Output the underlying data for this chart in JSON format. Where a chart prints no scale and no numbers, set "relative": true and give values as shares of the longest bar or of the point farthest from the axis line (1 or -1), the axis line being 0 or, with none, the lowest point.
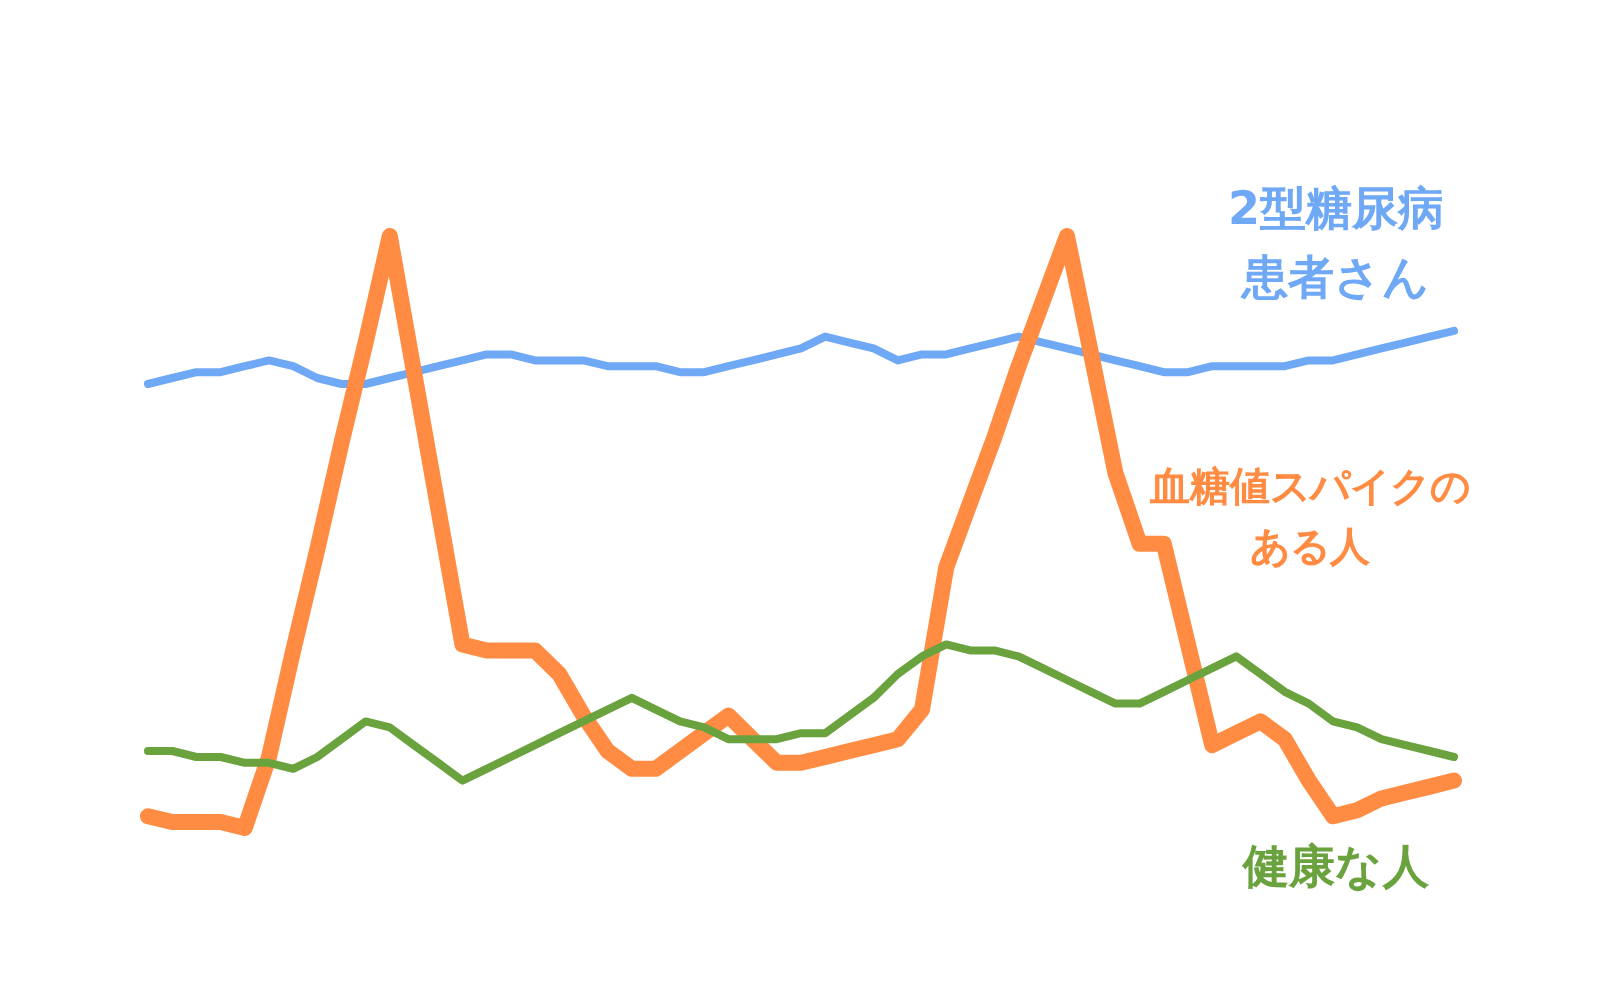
{
  "chart_data": {
    "type": "line",
    "relative": true,
    "legend": false,
    "grid": false,
    "marker": "none",
    "line_style": "solid",
    "categories": [
      null,
      null,
      null,
      null,
      null,
      null,
      null,
      null,
      null,
      null,
      null,
      null,
      null,
      null,
      null,
      null,
      null,
      null,
      null,
      null,
      null,
      null,
      null,
      null,
      null,
      null,
      null,
      null,
      null,
      null,
      null,
      null,
      null,
      null,
      null,
      null,
      null,
      null,
      null,
      null,
      null,
      null,
      null,
      null,
      null,
      null,
      null,
      null,
      null,
      null,
      null,
      null,
      null,
      null,
      null
    ],
    "series": [
      {
        "name": "2型糖尿病患者さん",
        "color": "#6fa8f5",
        "values": [
          0.75,
          0.76,
          0.77,
          0.77,
          0.78,
          0.79,
          0.78,
          0.76,
          0.75,
          0.75,
          0.76,
          0.77,
          0.78,
          0.79,
          0.8,
          0.8,
          0.79,
          0.79,
          0.79,
          0.78,
          0.78,
          0.78,
          0.77,
          0.77,
          0.78,
          0.79,
          0.8,
          0.81,
          0.83,
          0.82,
          0.81,
          0.79,
          0.8,
          0.8,
          0.81,
          0.82,
          0.83,
          0.82,
          0.81,
          0.8,
          0.79,
          0.78,
          0.77,
          0.77,
          0.78,
          0.78,
          0.78,
          0.78,
          0.79,
          0.79,
          0.8,
          0.81,
          0.82,
          0.83,
          0.84
        ]
      },
      {
        "name": "血糖値スパイクのある人",
        "color": "#ff8c42",
        "values": [
          0.02,
          0.01,
          0.01,
          0.01,
          0,
          0.12,
          0.3,
          0.47,
          0.65,
          0.82,
          1,
          0.77,
          0.54,
          0.31,
          0.3,
          0.3,
          0.3,
          0.26,
          0.19,
          0.13,
          0.1,
          0.1,
          0.13,
          0.16,
          0.19,
          0.15,
          0.11,
          0.11,
          0.12,
          0.13,
          0.14,
          0.15,
          0.2,
          0.44,
          0.55,
          0.66,
          0.78,
          0.89,
          1,
          0.8,
          0.6,
          0.48,
          0.48,
          0.31,
          0.14,
          0.16,
          0.18,
          0.15,
          0.08,
          0.02,
          0.03,
          0.05,
          0.06,
          0.07,
          0.08
        ]
      },
      {
        "name": "健康な人",
        "color": "#6aa23e",
        "values": [
          0.13,
          0.13,
          0.12,
          0.12,
          0.11,
          0.11,
          0.1,
          0.12,
          0.15,
          0.18,
          0.17,
          0.14,
          0.11,
          0.08,
          0.1,
          0.12,
          0.14,
          0.16,
          0.18,
          0.2,
          0.22,
          0.2,
          0.18,
          0.17,
          0.15,
          0.15,
          0.15,
          0.16,
          0.16,
          0.19,
          0.22,
          0.26,
          0.29,
          0.31,
          0.3,
          0.3,
          0.29,
          0.27,
          0.25,
          0.23,
          0.21,
          0.21,
          0.23,
          0.25,
          0.27,
          0.29,
          0.26,
          0.23,
          0.21,
          0.18,
          0.17,
          0.15,
          0.14,
          0.13,
          0.12
        ]
      }
    ]
  }
}
